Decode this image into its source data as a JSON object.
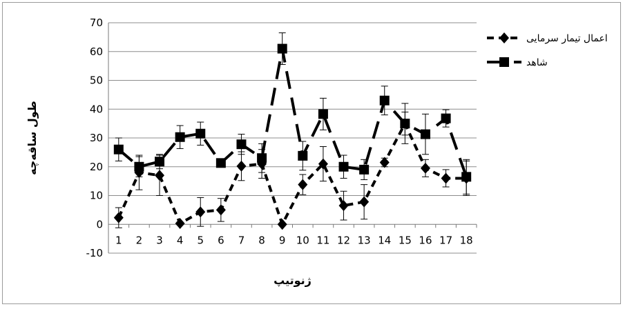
{
  "chart_data": {
    "type": "line",
    "title": "",
    "xlabel": "ژنوتیپ",
    "ylabel": "طول ساقه‌چه",
    "categories": [
      "1",
      "2",
      "3",
      "4",
      "5",
      "6",
      "7",
      "8",
      "9",
      "10",
      "11",
      "12",
      "13",
      "14",
      "15",
      "16",
      "17",
      "18"
    ],
    "ylim": [
      -10,
      70
    ],
    "yticks": [
      "-10",
      "0",
      "10",
      "20",
      "30",
      "40",
      "50",
      "60",
      "70"
    ],
    "grid": "horizontal",
    "legend_position": "right",
    "series": [
      {
        "name": "اعمال تیمار سرمایی",
        "marker": "diamond",
        "line_style": "dotted",
        "color": "#000000",
        "values": [
          2.3,
          18.0,
          17.0,
          0.3,
          4.3,
          5.0,
          20.2,
          21.0,
          0.0,
          13.8,
          21.0,
          6.5,
          7.8,
          21.5,
          35.0,
          19.5,
          16.0,
          16.0
        ],
        "error": [
          3.5,
          6.0,
          7.0,
          0.5,
          5.0,
          4.0,
          5.0,
          5.0,
          0.3,
          3.5,
          6.0,
          5.0,
          6.0,
          1.5,
          4.0,
          3.0,
          3.0,
          6.0
        ]
      },
      {
        "name": "شاهد",
        "marker": "square",
        "line_style": "long-dash-solid",
        "color": "#000000",
        "values": [
          26.0,
          20.0,
          21.8,
          30.3,
          31.5,
          21.3,
          27.8,
          23.0,
          61.0,
          23.8,
          38.3,
          20.0,
          19.0,
          43.0,
          35.0,
          31.3,
          36.8,
          16.5
        ],
        "error": [
          4.0,
          3.5,
          2.5,
          4.0,
          4.0,
          0.5,
          3.5,
          5.0,
          5.5,
          5.0,
          5.5,
          4.0,
          3.5,
          5.0,
          7.0,
          7.0,
          3.0,
          6.0
        ]
      }
    ]
  }
}
